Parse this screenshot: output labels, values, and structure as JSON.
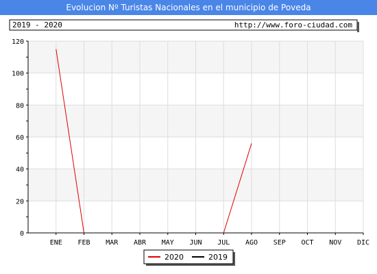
{
  "chart_data": {
    "type": "line",
    "title": "Evolucion Nº Turistas Nacionales en el municipio de Poveda",
    "period_label": "2019 - 2020",
    "source_url": "http://www.foro-ciudad.com",
    "categories": [
      "ENE",
      "FEB",
      "MAR",
      "ABR",
      "MAY",
      "JUN",
      "JUL",
      "AGO",
      "SEP",
      "OCT",
      "NOV",
      "DIC"
    ],
    "ylim": [
      0,
      120
    ],
    "yticks": [
      0,
      20,
      40,
      60,
      80,
      100,
      120
    ],
    "grid": true,
    "legend_position": "bottom",
    "series": [
      {
        "name": "2020",
        "color": "#dd0000",
        "values": [
          115,
          0,
          null,
          null,
          null,
          null,
          0,
          56,
          null,
          null,
          null,
          null
        ]
      },
      {
        "name": "2019",
        "color": "#000000",
        "values": [
          null,
          null,
          null,
          null,
          null,
          null,
          null,
          null,
          null,
          null,
          null,
          null
        ]
      }
    ],
    "colors": {
      "title_bar": "#4a86e8",
      "band": "#f5f5f5",
      "grid": "#dddddd"
    }
  }
}
